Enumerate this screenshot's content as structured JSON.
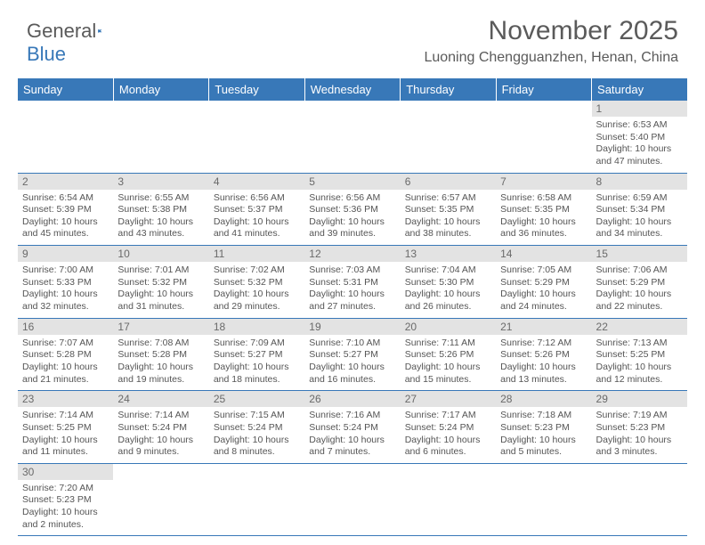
{
  "logo": {
    "text_a": "General",
    "text_b": "Blue"
  },
  "title": "November 2025",
  "location": "Luoning Chengguanzhen, Henan, China",
  "colors": {
    "header_bg": "#3878b8",
    "header_text": "#ffffff",
    "daynum_bg": "#e3e3e3",
    "border": "#3878b8",
    "body_text": "#555555"
  },
  "day_headers": [
    "Sunday",
    "Monday",
    "Tuesday",
    "Wednesday",
    "Thursday",
    "Friday",
    "Saturday"
  ],
  "weeks": [
    [
      null,
      null,
      null,
      null,
      null,
      null,
      {
        "n": "1",
        "sunrise": "6:53 AM",
        "sunset": "5:40 PM",
        "daylight": "10 hours and 47 minutes."
      }
    ],
    [
      {
        "n": "2",
        "sunrise": "6:54 AM",
        "sunset": "5:39 PM",
        "daylight": "10 hours and 45 minutes."
      },
      {
        "n": "3",
        "sunrise": "6:55 AM",
        "sunset": "5:38 PM",
        "daylight": "10 hours and 43 minutes."
      },
      {
        "n": "4",
        "sunrise": "6:56 AM",
        "sunset": "5:37 PM",
        "daylight": "10 hours and 41 minutes."
      },
      {
        "n": "5",
        "sunrise": "6:56 AM",
        "sunset": "5:36 PM",
        "daylight": "10 hours and 39 minutes."
      },
      {
        "n": "6",
        "sunrise": "6:57 AM",
        "sunset": "5:35 PM",
        "daylight": "10 hours and 38 minutes."
      },
      {
        "n": "7",
        "sunrise": "6:58 AM",
        "sunset": "5:35 PM",
        "daylight": "10 hours and 36 minutes."
      },
      {
        "n": "8",
        "sunrise": "6:59 AM",
        "sunset": "5:34 PM",
        "daylight": "10 hours and 34 minutes."
      }
    ],
    [
      {
        "n": "9",
        "sunrise": "7:00 AM",
        "sunset": "5:33 PM",
        "daylight": "10 hours and 32 minutes."
      },
      {
        "n": "10",
        "sunrise": "7:01 AM",
        "sunset": "5:32 PM",
        "daylight": "10 hours and 31 minutes."
      },
      {
        "n": "11",
        "sunrise": "7:02 AM",
        "sunset": "5:32 PM",
        "daylight": "10 hours and 29 minutes."
      },
      {
        "n": "12",
        "sunrise": "7:03 AM",
        "sunset": "5:31 PM",
        "daylight": "10 hours and 27 minutes."
      },
      {
        "n": "13",
        "sunrise": "7:04 AM",
        "sunset": "5:30 PM",
        "daylight": "10 hours and 26 minutes."
      },
      {
        "n": "14",
        "sunrise": "7:05 AM",
        "sunset": "5:29 PM",
        "daylight": "10 hours and 24 minutes."
      },
      {
        "n": "15",
        "sunrise": "7:06 AM",
        "sunset": "5:29 PM",
        "daylight": "10 hours and 22 minutes."
      }
    ],
    [
      {
        "n": "16",
        "sunrise": "7:07 AM",
        "sunset": "5:28 PM",
        "daylight": "10 hours and 21 minutes."
      },
      {
        "n": "17",
        "sunrise": "7:08 AM",
        "sunset": "5:28 PM",
        "daylight": "10 hours and 19 minutes."
      },
      {
        "n": "18",
        "sunrise": "7:09 AM",
        "sunset": "5:27 PM",
        "daylight": "10 hours and 18 minutes."
      },
      {
        "n": "19",
        "sunrise": "7:10 AM",
        "sunset": "5:27 PM",
        "daylight": "10 hours and 16 minutes."
      },
      {
        "n": "20",
        "sunrise": "7:11 AM",
        "sunset": "5:26 PM",
        "daylight": "10 hours and 15 minutes."
      },
      {
        "n": "21",
        "sunrise": "7:12 AM",
        "sunset": "5:26 PM",
        "daylight": "10 hours and 13 minutes."
      },
      {
        "n": "22",
        "sunrise": "7:13 AM",
        "sunset": "5:25 PM",
        "daylight": "10 hours and 12 minutes."
      }
    ],
    [
      {
        "n": "23",
        "sunrise": "7:14 AM",
        "sunset": "5:25 PM",
        "daylight": "10 hours and 11 minutes."
      },
      {
        "n": "24",
        "sunrise": "7:14 AM",
        "sunset": "5:24 PM",
        "daylight": "10 hours and 9 minutes."
      },
      {
        "n": "25",
        "sunrise": "7:15 AM",
        "sunset": "5:24 PM",
        "daylight": "10 hours and 8 minutes."
      },
      {
        "n": "26",
        "sunrise": "7:16 AM",
        "sunset": "5:24 PM",
        "daylight": "10 hours and 7 minutes."
      },
      {
        "n": "27",
        "sunrise": "7:17 AM",
        "sunset": "5:24 PM",
        "daylight": "10 hours and 6 minutes."
      },
      {
        "n": "28",
        "sunrise": "7:18 AM",
        "sunset": "5:23 PM",
        "daylight": "10 hours and 5 minutes."
      },
      {
        "n": "29",
        "sunrise": "7:19 AM",
        "sunset": "5:23 PM",
        "daylight": "10 hours and 3 minutes."
      }
    ],
    [
      {
        "n": "30",
        "sunrise": "7:20 AM",
        "sunset": "5:23 PM",
        "daylight": "10 hours and 2 minutes."
      },
      null,
      null,
      null,
      null,
      null,
      null
    ]
  ],
  "labels": {
    "sunrise": "Sunrise:",
    "sunset": "Sunset:",
    "daylight": "Daylight:"
  }
}
